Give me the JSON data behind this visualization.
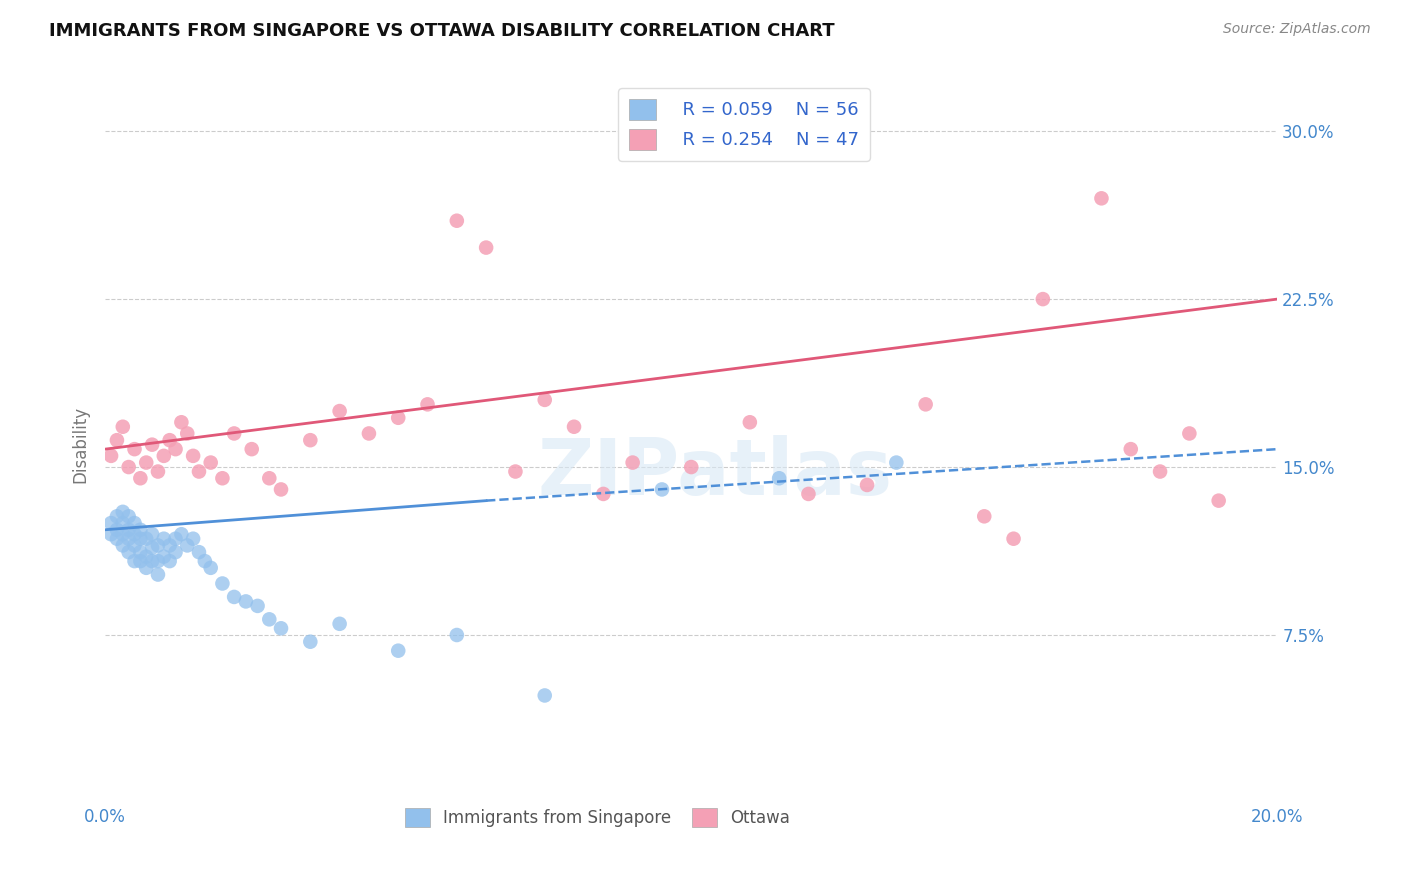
{
  "title": "IMMIGRANTS FROM SINGAPORE VS OTTAWA DISABILITY CORRELATION CHART",
  "source": "Source: ZipAtlas.com",
  "ylabel": "Disability",
  "xlim": [
    0.0,
    0.2
  ],
  "ylim": [
    0.0,
    0.32
  ],
  "xticks": [
    0.0,
    0.05,
    0.1,
    0.15,
    0.2
  ],
  "xtick_labels": [
    "0.0%",
    "",
    "",
    "",
    "20.0%"
  ],
  "ytick_positions": [
    0.075,
    0.15,
    0.225,
    0.3
  ],
  "ytick_labels": [
    "7.5%",
    "15.0%",
    "22.5%",
    "30.0%"
  ],
  "blue_R": "R = 0.059",
  "blue_N": "N = 56",
  "pink_R": "R = 0.254",
  "pink_N": "N = 47",
  "blue_color": "#92C0EC",
  "pink_color": "#F4A0B5",
  "blue_line_color": "#5090D8",
  "pink_line_color": "#E05878",
  "legend_label_blue": "Immigrants from Singapore",
  "legend_label_pink": "Ottawa",
  "watermark": "ZIPatlas",
  "blue_scatter_x": [
    0.001,
    0.001,
    0.002,
    0.002,
    0.002,
    0.003,
    0.003,
    0.003,
    0.003,
    0.004,
    0.004,
    0.004,
    0.004,
    0.005,
    0.005,
    0.005,
    0.005,
    0.006,
    0.006,
    0.006,
    0.006,
    0.007,
    0.007,
    0.007,
    0.008,
    0.008,
    0.008,
    0.009,
    0.009,
    0.009,
    0.01,
    0.01,
    0.011,
    0.011,
    0.012,
    0.012,
    0.013,
    0.014,
    0.015,
    0.016,
    0.017,
    0.018,
    0.02,
    0.022,
    0.024,
    0.026,
    0.028,
    0.03,
    0.035,
    0.04,
    0.05,
    0.06,
    0.075,
    0.095,
    0.115,
    0.135
  ],
  "blue_scatter_y": [
    0.12,
    0.125,
    0.118,
    0.122,
    0.128,
    0.115,
    0.12,
    0.125,
    0.13,
    0.112,
    0.118,
    0.122,
    0.128,
    0.108,
    0.115,
    0.12,
    0.125,
    0.108,
    0.112,
    0.118,
    0.122,
    0.105,
    0.11,
    0.118,
    0.108,
    0.114,
    0.12,
    0.102,
    0.108,
    0.115,
    0.11,
    0.118,
    0.108,
    0.115,
    0.112,
    0.118,
    0.12,
    0.115,
    0.118,
    0.112,
    0.108,
    0.105,
    0.098,
    0.092,
    0.09,
    0.088,
    0.082,
    0.078,
    0.072,
    0.08,
    0.068,
    0.075,
    0.048,
    0.14,
    0.145,
    0.152
  ],
  "pink_scatter_x": [
    0.001,
    0.002,
    0.003,
    0.004,
    0.005,
    0.006,
    0.007,
    0.008,
    0.009,
    0.01,
    0.011,
    0.012,
    0.013,
    0.014,
    0.015,
    0.016,
    0.018,
    0.02,
    0.022,
    0.025,
    0.028,
    0.03,
    0.035,
    0.04,
    0.045,
    0.05,
    0.055,
    0.06,
    0.065,
    0.07,
    0.075,
    0.08,
    0.085,
    0.09,
    0.1,
    0.11,
    0.12,
    0.13,
    0.14,
    0.15,
    0.155,
    0.16,
    0.17,
    0.175,
    0.18,
    0.185,
    0.19
  ],
  "pink_scatter_y": [
    0.155,
    0.162,
    0.168,
    0.15,
    0.158,
    0.145,
    0.152,
    0.16,
    0.148,
    0.155,
    0.162,
    0.158,
    0.17,
    0.165,
    0.155,
    0.148,
    0.152,
    0.145,
    0.165,
    0.158,
    0.145,
    0.14,
    0.162,
    0.175,
    0.165,
    0.172,
    0.178,
    0.26,
    0.248,
    0.148,
    0.18,
    0.168,
    0.138,
    0.152,
    0.15,
    0.17,
    0.138,
    0.142,
    0.178,
    0.128,
    0.118,
    0.225,
    0.27,
    0.158,
    0.148,
    0.165,
    0.135
  ],
  "blue_line_solid": {
    "x0": 0.0,
    "x1": 0.065,
    "y0": 0.122,
    "y1": 0.135
  },
  "blue_line_dashed": {
    "x0": 0.065,
    "x1": 0.2,
    "y0": 0.135,
    "y1": 0.158
  },
  "pink_line": {
    "x0": 0.0,
    "x1": 0.2,
    "y0": 0.158,
    "y1": 0.225
  }
}
